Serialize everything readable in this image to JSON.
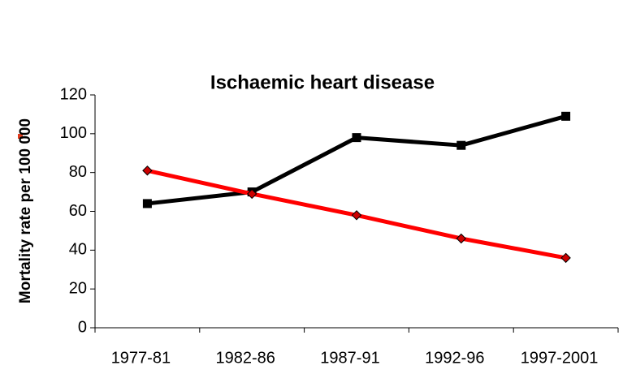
{
  "chart_data": {
    "type": "line",
    "title": "Ischaemic heart disease",
    "y_label": "Mortality rate per 100 000",
    "categories": [
      "1977-81",
      "1982-86",
      "1987-91",
      "1992-96",
      "1997-2001"
    ],
    "series": [
      {
        "color": "#000000",
        "marker": "square",
        "values": [
          64,
          70,
          98,
          94,
          109
        ]
      },
      {
        "color": "#ff0000",
        "marker": "diamond",
        "values": [
          81,
          69,
          58,
          46,
          36
        ]
      }
    ],
    "ylim": [
      0,
      120
    ],
    "yticks": [
      0,
      20,
      40,
      60,
      80,
      100,
      120
    ],
    "grid": false
  }
}
